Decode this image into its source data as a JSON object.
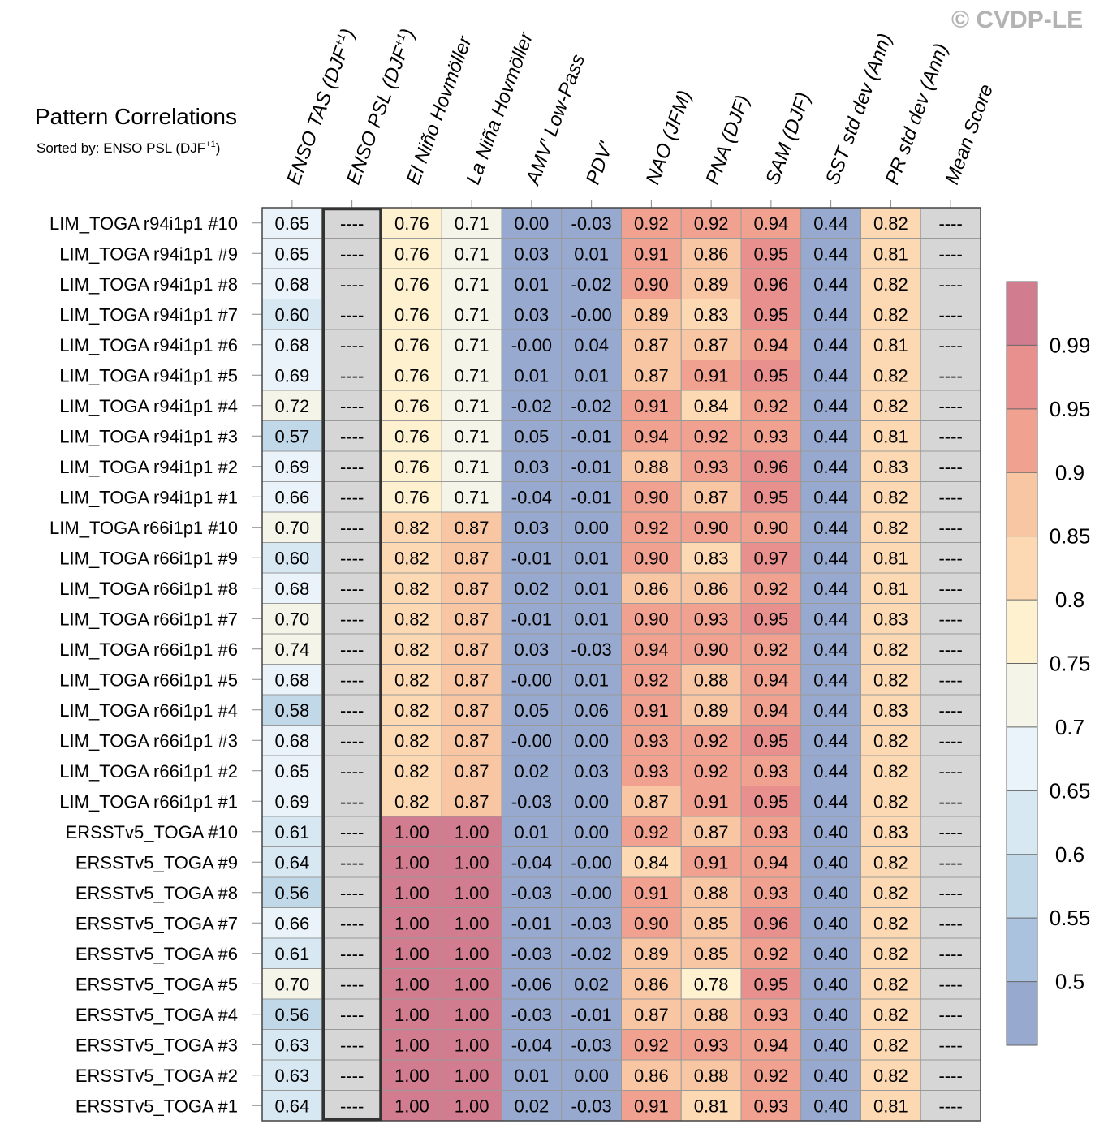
{
  "copyright": "© CVDP-LE",
  "chart_data": {
    "type": "heatmap",
    "title": "Pattern Correlations",
    "subtitle": {
      "text": "Sorted by: ENSO PSL (DJF",
      "sup": "+1",
      "close": ")"
    },
    "columns": [
      {
        "label": "ENSO TAS (DJF",
        "sup": "+1",
        "close": ")"
      },
      {
        "label": "ENSO PSL (DJF",
        "sup": "+1",
        "close": ")"
      },
      {
        "label": "El Niño Hovmöller"
      },
      {
        "label": "La Niña Hovmöller"
      },
      {
        "label": "AMV' Low-Pass"
      },
      {
        "label": "PDV'"
      },
      {
        "label": "NAO (JFM)"
      },
      {
        "label": "PNA (DJF)"
      },
      {
        "label": "SAM (DJF)"
      },
      {
        "label": "SST std dev (Ann)"
      },
      {
        "label": "PR std dev (Ann)"
      },
      {
        "label": "Mean Score"
      }
    ],
    "sorted_column_index": 1,
    "missing_text": "----",
    "rows": [
      {
        "label": "LIM_TOGA r94i1p1 #10",
        "values": [
          0.65,
          null,
          0.76,
          0.71,
          0.0,
          -0.03,
          0.92,
          0.92,
          0.94,
          0.44,
          0.82,
          null
        ]
      },
      {
        "label": "LIM_TOGA r94i1p1 #9",
        "values": [
          0.65,
          null,
          0.76,
          0.71,
          0.03,
          0.01,
          0.91,
          0.86,
          0.95,
          0.44,
          0.81,
          null
        ]
      },
      {
        "label": "LIM_TOGA r94i1p1 #8",
        "values": [
          0.68,
          null,
          0.76,
          0.71,
          0.01,
          -0.02,
          0.9,
          0.89,
          0.96,
          0.44,
          0.82,
          null
        ]
      },
      {
        "label": "LIM_TOGA r94i1p1 #7",
        "values": [
          0.6,
          null,
          0.76,
          0.71,
          0.03,
          -0.0,
          0.89,
          0.83,
          0.95,
          0.44,
          0.82,
          null
        ]
      },
      {
        "label": "LIM_TOGA r94i1p1 #6",
        "values": [
          0.68,
          null,
          0.76,
          0.71,
          -0.0,
          0.04,
          0.87,
          0.87,
          0.94,
          0.44,
          0.81,
          null
        ]
      },
      {
        "label": "LIM_TOGA r94i1p1 #5",
        "values": [
          0.69,
          null,
          0.76,
          0.71,
          0.01,
          0.01,
          0.87,
          0.91,
          0.95,
          0.44,
          0.82,
          null
        ]
      },
      {
        "label": "LIM_TOGA r94i1p1 #4",
        "values": [
          0.72,
          null,
          0.76,
          0.71,
          -0.02,
          -0.02,
          0.91,
          0.84,
          0.92,
          0.44,
          0.82,
          null
        ]
      },
      {
        "label": "LIM_TOGA r94i1p1 #3",
        "values": [
          0.57,
          null,
          0.76,
          0.71,
          0.05,
          -0.01,
          0.94,
          0.92,
          0.93,
          0.44,
          0.81,
          null
        ]
      },
      {
        "label": "LIM_TOGA r94i1p1 #2",
        "values": [
          0.69,
          null,
          0.76,
          0.71,
          0.03,
          -0.01,
          0.88,
          0.93,
          0.96,
          0.44,
          0.83,
          null
        ]
      },
      {
        "label": "LIM_TOGA r94i1p1 #1",
        "values": [
          0.66,
          null,
          0.76,
          0.71,
          -0.04,
          -0.01,
          0.9,
          0.87,
          0.95,
          0.44,
          0.82,
          null
        ]
      },
      {
        "label": "LIM_TOGA r66i1p1 #10",
        "values": [
          0.7,
          null,
          0.82,
          0.87,
          0.03,
          0.0,
          0.92,
          0.9,
          0.9,
          0.44,
          0.82,
          null
        ]
      },
      {
        "label": "LIM_TOGA r66i1p1 #9",
        "values": [
          0.6,
          null,
          0.82,
          0.87,
          -0.01,
          0.01,
          0.9,
          0.83,
          0.97,
          0.44,
          0.81,
          null
        ]
      },
      {
        "label": "LIM_TOGA r66i1p1 #8",
        "values": [
          0.68,
          null,
          0.82,
          0.87,
          0.02,
          0.01,
          0.86,
          0.86,
          0.92,
          0.44,
          0.81,
          null
        ]
      },
      {
        "label": "LIM_TOGA r66i1p1 #7",
        "values": [
          0.7,
          null,
          0.82,
          0.87,
          -0.01,
          0.01,
          0.9,
          0.93,
          0.95,
          0.44,
          0.83,
          null
        ]
      },
      {
        "label": "LIM_TOGA r66i1p1 #6",
        "values": [
          0.74,
          null,
          0.82,
          0.87,
          0.03,
          -0.03,
          0.94,
          0.9,
          0.92,
          0.44,
          0.82,
          null
        ]
      },
      {
        "label": "LIM_TOGA r66i1p1 #5",
        "values": [
          0.68,
          null,
          0.82,
          0.87,
          -0.0,
          0.01,
          0.92,
          0.88,
          0.94,
          0.44,
          0.82,
          null
        ]
      },
      {
        "label": "LIM_TOGA r66i1p1 #4",
        "values": [
          0.58,
          null,
          0.82,
          0.87,
          0.05,
          0.06,
          0.91,
          0.89,
          0.94,
          0.44,
          0.83,
          null
        ]
      },
      {
        "label": "LIM_TOGA r66i1p1 #3",
        "values": [
          0.68,
          null,
          0.82,
          0.87,
          -0.0,
          0.0,
          0.93,
          0.92,
          0.95,
          0.44,
          0.82,
          null
        ]
      },
      {
        "label": "LIM_TOGA r66i1p1 #2",
        "values": [
          0.65,
          null,
          0.82,
          0.87,
          0.02,
          0.03,
          0.93,
          0.92,
          0.93,
          0.44,
          0.82,
          null
        ]
      },
      {
        "label": "LIM_TOGA r66i1p1 #1",
        "values": [
          0.69,
          null,
          0.82,
          0.87,
          -0.03,
          0.0,
          0.87,
          0.91,
          0.95,
          0.44,
          0.82,
          null
        ]
      },
      {
        "label": "ERSSTv5_TOGA #10",
        "values": [
          0.61,
          null,
          1.0,
          1.0,
          0.01,
          0.0,
          0.92,
          0.87,
          0.93,
          0.4,
          0.83,
          null
        ]
      },
      {
        "label": "ERSSTv5_TOGA #9",
        "values": [
          0.64,
          null,
          1.0,
          1.0,
          -0.04,
          -0.0,
          0.84,
          0.91,
          0.94,
          0.4,
          0.82,
          null
        ]
      },
      {
        "label": "ERSSTv5_TOGA #8",
        "values": [
          0.56,
          null,
          1.0,
          1.0,
          -0.03,
          -0.0,
          0.91,
          0.88,
          0.93,
          0.4,
          0.82,
          null
        ]
      },
      {
        "label": "ERSSTv5_TOGA #7",
        "values": [
          0.66,
          null,
          1.0,
          1.0,
          -0.01,
          -0.03,
          0.9,
          0.85,
          0.96,
          0.4,
          0.82,
          null
        ]
      },
      {
        "label": "ERSSTv5_TOGA #6",
        "values": [
          0.61,
          null,
          1.0,
          1.0,
          -0.03,
          -0.02,
          0.89,
          0.85,
          0.92,
          0.4,
          0.82,
          null
        ]
      },
      {
        "label": "ERSSTv5_TOGA #5",
        "values": [
          0.7,
          null,
          1.0,
          1.0,
          -0.06,
          0.02,
          0.86,
          0.78,
          0.95,
          0.4,
          0.82,
          null
        ]
      },
      {
        "label": "ERSSTv5_TOGA #4",
        "values": [
          0.56,
          null,
          1.0,
          1.0,
          -0.03,
          -0.01,
          0.87,
          0.88,
          0.93,
          0.4,
          0.82,
          null
        ]
      },
      {
        "label": "ERSSTv5_TOGA #3",
        "values": [
          0.63,
          null,
          1.0,
          1.0,
          -0.04,
          -0.03,
          0.92,
          0.93,
          0.94,
          0.4,
          0.82,
          null
        ]
      },
      {
        "label": "ERSSTv5_TOGA #2",
        "values": [
          0.63,
          null,
          1.0,
          1.0,
          0.01,
          0.0,
          0.86,
          0.88,
          0.92,
          0.4,
          0.82,
          null
        ]
      },
      {
        "label": "ERSSTv5_TOGA #1",
        "values": [
          0.64,
          null,
          1.0,
          1.0,
          0.02,
          -0.03,
          0.91,
          0.81,
          0.93,
          0.4,
          0.81,
          null
        ]
      }
    ],
    "colorbar": {
      "boundaries": [
        0.5,
        0.55,
        0.6,
        0.65,
        0.7,
        0.75,
        0.8,
        0.85,
        0.9,
        0.95,
        0.99
      ],
      "tick_labels": [
        "0.99",
        "0.95",
        "0.9",
        "0.85",
        "0.8",
        "0.75",
        "0.7",
        "0.65",
        "0.6",
        "0.55",
        "0.5"
      ],
      "colors": [
        "#97a9cf",
        "#aac2dd",
        "#c0d8e8",
        "#d7e8f3",
        "#eaf3f9",
        "#f5f4e9",
        "#fdf1d0",
        "#fcd9b2",
        "#f8c6a2",
        "#f0a190",
        "#e7908e",
        "#d27c8f"
      ],
      "missing_color": "#d6d6d6",
      "placement": "right"
    }
  }
}
